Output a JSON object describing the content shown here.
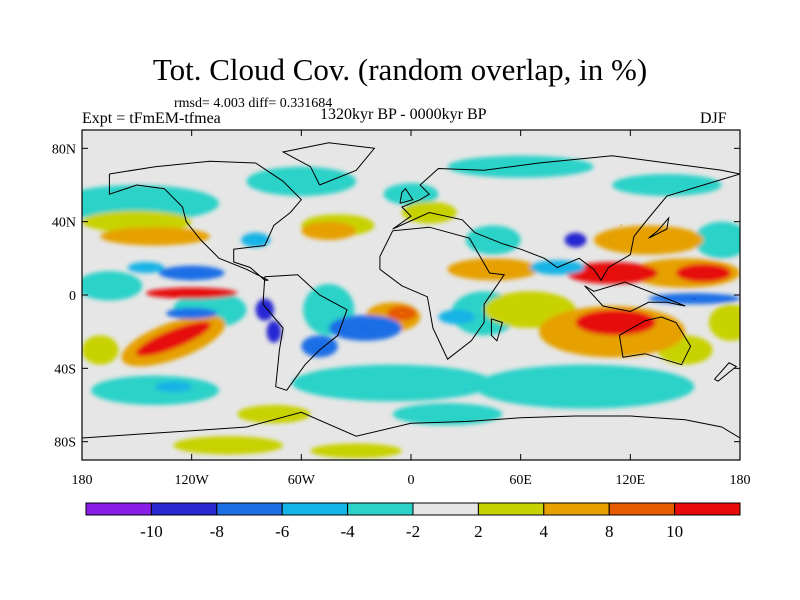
{
  "title": "Tot. Cloud Cov. (random overlap, in %)",
  "stats_text": "rmsd= 4.003 diff= 0.331684",
  "experiment_label": "Expt = tFmEM-tfmea",
  "period_label": "1320kyr BP - 0000kyr BP",
  "season_label": "DJF",
  "chart_data": {
    "type": "heatmap",
    "title": "Tot. Cloud Cov. (random overlap, in %)",
    "subtitle": "1320kyr BP - 0000kyr BP",
    "variable": "Total cloud cover difference (%)",
    "x_range": [
      -180,
      180
    ],
    "y_range": [
      -90,
      90
    ],
    "x_ticks": [
      {
        "value": -180,
        "label": "180"
      },
      {
        "value": -120,
        "label": "120W"
      },
      {
        "value": -60,
        "label": "60W"
      },
      {
        "value": 0,
        "label": "0"
      },
      {
        "value": 60,
        "label": "60E"
      },
      {
        "value": 120,
        "label": "120E"
      },
      {
        "value": 180,
        "label": "180"
      }
    ],
    "y_ticks": [
      {
        "value": 80,
        "label": "80N"
      },
      {
        "value": 40,
        "label": "40N"
      },
      {
        "value": 0,
        "label": "0"
      },
      {
        "value": -40,
        "label": "40S"
      },
      {
        "value": -80,
        "label": "80S"
      }
    ],
    "colorbar": {
      "levels": [
        -10,
        -8,
        -6,
        -4,
        -2,
        2,
        4,
        8,
        10
      ],
      "tick_labels": [
        "-10",
        "-8",
        "-6",
        "-4",
        "-2",
        "2",
        "4",
        "8",
        "10"
      ],
      "colors": [
        "#8a1ee6",
        "#2828d2",
        "#1e6ee6",
        "#14b4e6",
        "#2ad2c8",
        "#e6e6e6",
        "#c8d200",
        "#e6a000",
        "#e65a00",
        "#e60a0a"
      ]
    },
    "anomalies": [
      {
        "name": "Tropical E Pacific positive band",
        "lon": -120,
        "lat": 2,
        "value": 10
      },
      {
        "name": "SE Pacific positive band",
        "lon": -130,
        "lat": -22,
        "value": 10
      },
      {
        "name": "Equatorial E Pacific negative",
        "lon": -120,
        "lat": 12,
        "value": -6
      },
      {
        "name": "S Atlantic negative",
        "lon": -25,
        "lat": -18,
        "value": -8
      },
      {
        "name": "E Atlantic positive",
        "lon": -5,
        "lat": -10,
        "value": 8
      },
      {
        "name": "Indian Ocean positive",
        "lon": 110,
        "lat": -12,
        "value": 10
      },
      {
        "name": "Maritime continent positive",
        "lon": 120,
        "lat": 10,
        "value": 10
      },
      {
        "name": "E Asia positive",
        "lon": 115,
        "lat": 38,
        "value": 8
      },
      {
        "name": "Tibet negative",
        "lon": 90,
        "lat": 30,
        "value": -8
      },
      {
        "name": "W Pacific negative",
        "lon": 155,
        "lat": -2,
        "value": -8
      },
      {
        "name": "N Pacific positive",
        "lon": -140,
        "lat": 32,
        "value": 8
      },
      {
        "name": "Southern Ocean negative",
        "lon": 30,
        "lat": -52,
        "value": -4
      },
      {
        "name": "Antarctic positive",
        "lon": -110,
        "lat": -82,
        "value": 4
      }
    ]
  }
}
